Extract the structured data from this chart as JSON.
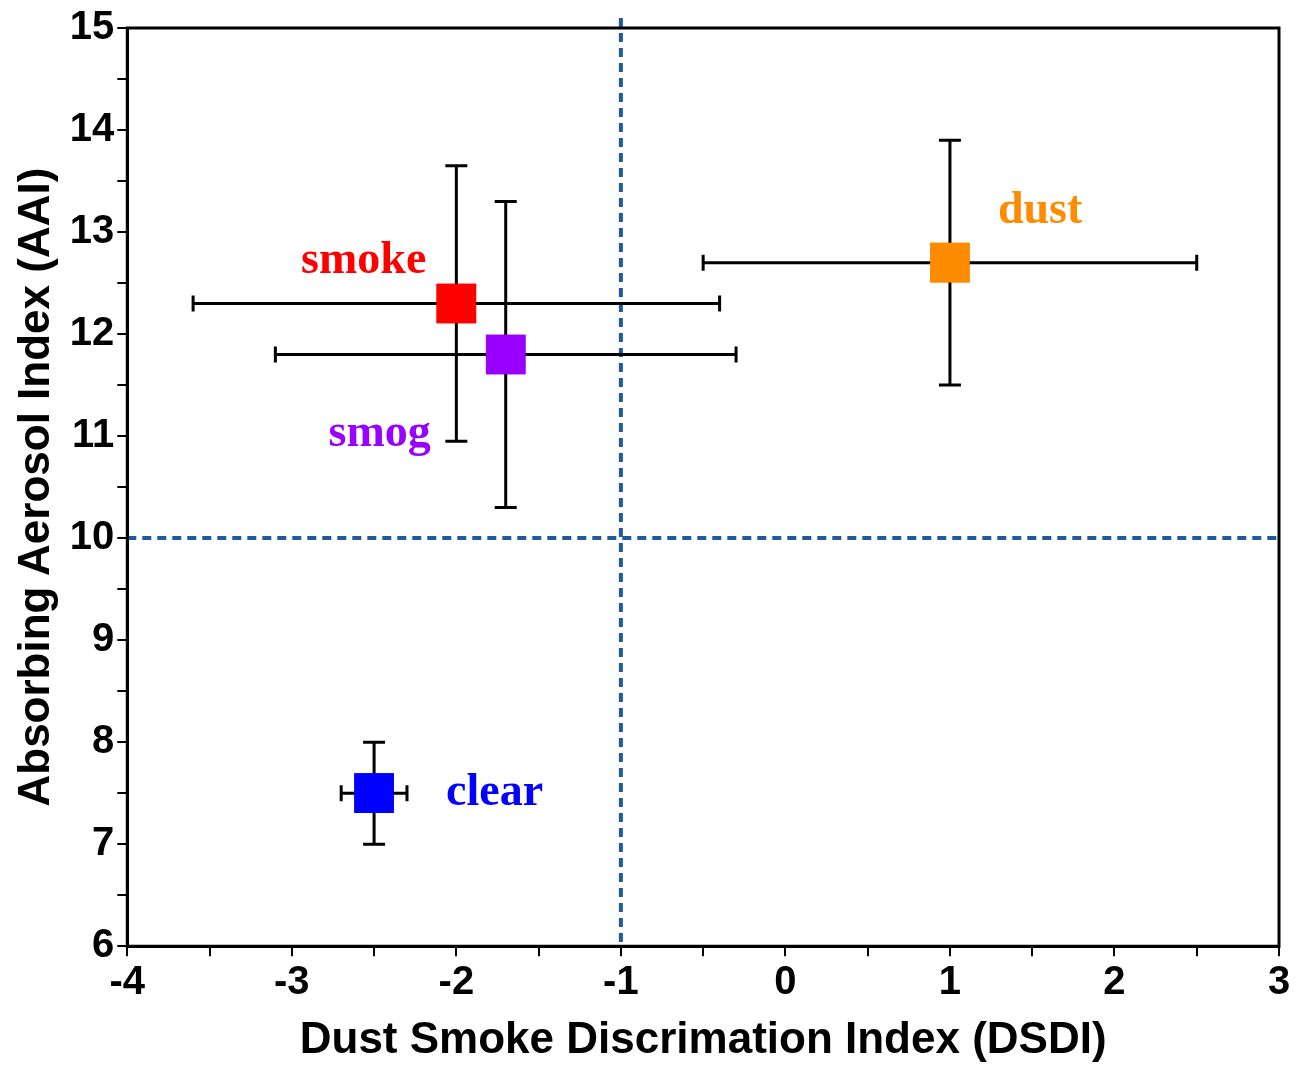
{
  "chart_data": {
    "type": "scatter",
    "xlabel": "Dust Smoke Discrimation Index (DSDI)",
    "ylabel": "Absorbing Aerosol Index (AAI)",
    "xlim": [
      -4,
      3
    ],
    "xticks": [
      -4,
      {
        "value": -3.5,
        "label": null
      },
      -3,
      {
        "value": -2.5,
        "label": null
      },
      -2,
      {
        "value": -1.5,
        "label": null
      },
      -1,
      {
        "value": -0.5,
        "label": null
      },
      0,
      {
        "value": 0.5,
        "label": null
      },
      1,
      {
        "value": 1.5,
        "label": null
      },
      2,
      {
        "value": 2.5,
        "label": null
      },
      3
    ],
    "ylim": [
      6,
      15
    ],
    "yticks": [
      6,
      {
        "value": 6.5,
        "label": null
      },
      7,
      {
        "value": 7.5,
        "label": null
      },
      8,
      {
        "value": 8.5,
        "label": null
      },
      9,
      {
        "value": 9.5,
        "label": null
      },
      10,
      {
        "value": 10.5,
        "label": null
      },
      11,
      {
        "value": 11.5,
        "label": null
      },
      12,
      {
        "value": 12.5,
        "label": null
      },
      13,
      {
        "value": 13.5,
        "label": null
      },
      14,
      {
        "value": 14.5,
        "label": null
      },
      15
    ],
    "marker": "square",
    "grid": false,
    "legend": false,
    "series": [
      {
        "name": "smoke",
        "color": "#ff0000",
        "x": [
          -2.0
        ],
        "values": [
          12.3
        ],
        "errors": [
          1.35
        ],
        "xerrors": [
          1.6
        ]
      },
      {
        "name": "smog",
        "color": "#9900ff",
        "x": [
          -1.7
        ],
        "values": [
          11.8
        ],
        "errors": [
          1.5
        ],
        "xerrors": [
          1.4
        ]
      },
      {
        "name": "dust",
        "color": "#ff8c00",
        "x": [
          1.0
        ],
        "values": [
          12.7
        ],
        "errors": [
          1.2
        ],
        "xerrors": [
          1.5
        ]
      },
      {
        "name": "clear",
        "color": "#0000ff",
        "x": [
          -2.5
        ],
        "values": [
          7.5
        ],
        "errors": [
          0.5
        ],
        "xerrors": [
          0.2
        ]
      }
    ],
    "ref_lines": [
      {
        "axis": "x",
        "value": -1,
        "color": "#1f5a9e",
        "line_style": "dashed"
      },
      {
        "axis": "y",
        "value": 10,
        "color": "#1f5a9e",
        "line_style": "dashed"
      }
    ]
  }
}
